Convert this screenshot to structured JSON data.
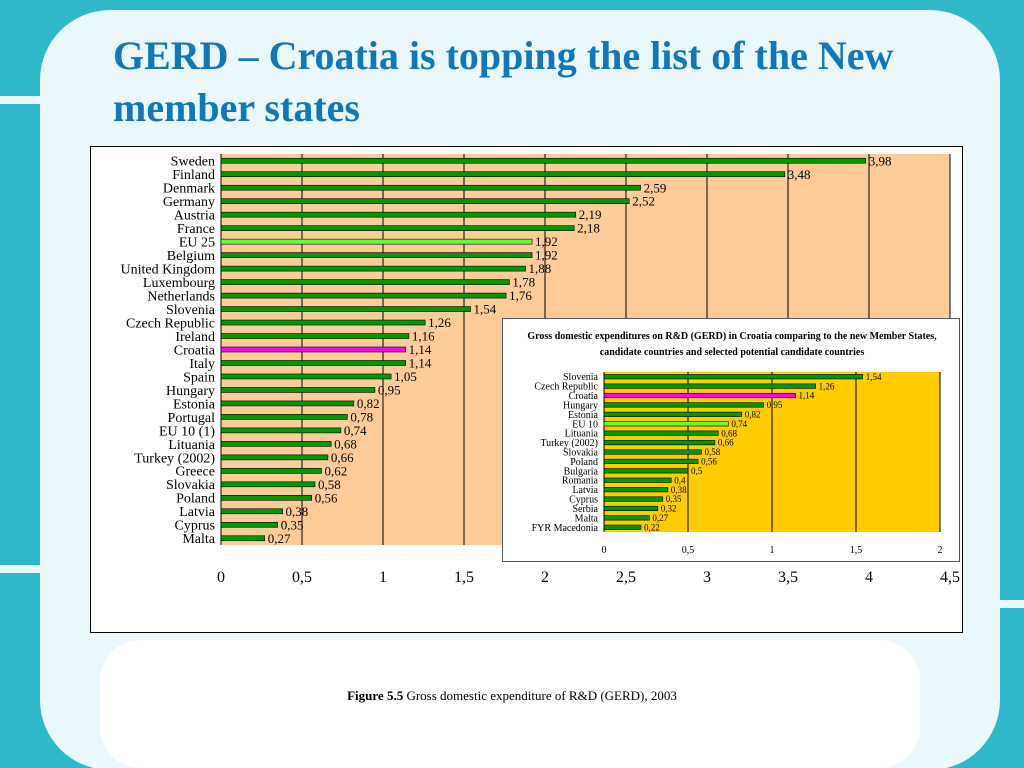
{
  "slide": {
    "title": "GERD – Croatia is topping the list of the New member states",
    "caption_label": "Figure 5.5",
    "caption_text": "Gross domestic expenditure of R&D (GERD), 2003"
  },
  "colors": {
    "background": "#2fb8c9",
    "panel": "#eaf7fb",
    "title": "#1177bb",
    "plot_main": "#ffcc99",
    "plot_inset": "#ffcc00",
    "bar": "#009900",
    "bar_eu": "#66ff33",
    "bar_highlight": "#ff00ff"
  },
  "chart_data": [
    {
      "type": "bar",
      "orientation": "horizontal",
      "title": "",
      "xlabel": "",
      "ylabel": "",
      "xlim": [
        0,
        4.5
      ],
      "xticks": [
        "0",
        "0,5",
        "1",
        "1,5",
        "2",
        "2,5",
        "3",
        "3,5",
        "4",
        "4,5"
      ],
      "grid": "vertical",
      "legend": "none",
      "categories": [
        "Sweden",
        "Finland",
        "Denmark",
        "Germany",
        "Austria",
        "France",
        "EU 25",
        "Belgium",
        "United Kingdom",
        "Luxembourg",
        "Netherlands",
        "Slovenia",
        "Czech Republic",
        "Ireland",
        "Croatia",
        "Italy",
        "Spain",
        "Hungary",
        "Estonia",
        "Portugal",
        "EU 10 (1)",
        "Lituania",
        "Turkey (2002)",
        "Greece",
        "Slovakia",
        "Poland",
        "Latvia",
        "Cyprus",
        "Malta"
      ],
      "values": [
        3.98,
        3.48,
        2.59,
        2.52,
        2.19,
        2.18,
        1.92,
        1.92,
        1.88,
        1.78,
        1.76,
        1.54,
        1.26,
        1.16,
        1.14,
        1.14,
        1.05,
        0.95,
        0.82,
        0.78,
        0.74,
        0.68,
        0.66,
        0.62,
        0.58,
        0.56,
        0.38,
        0.35,
        0.27
      ],
      "value_labels": [
        "3,98",
        "3,48",
        "2,59",
        "2,52",
        "2,19",
        "2,18",
        "1,92",
        "1,92",
        "1,88",
        "1,78",
        "1,76",
        "1,54",
        "1,26",
        "1,16",
        "1,14",
        "1,14",
        "1,05",
        "0,95",
        "0,82",
        "0,78",
        "0,74",
        "0,68",
        "0,66",
        "0,62",
        "0,58",
        "0,56",
        "0,38",
        "0,35",
        "0,27"
      ],
      "highlight": {
        "Croatia": "bar_highlight",
        "EU 25": "bar_eu"
      }
    },
    {
      "type": "bar",
      "orientation": "horizontal",
      "title": "Gross domestic expenditures on R&D (GERD) in Croatia comparing to the new Member States, candidate countries and selected potential candidate countries",
      "xlabel": "",
      "ylabel": "",
      "xlim": [
        0,
        2
      ],
      "xticks": [
        "0",
        "0,5",
        "1",
        "1,5",
        "2"
      ],
      "grid": "vertical",
      "legend": "none",
      "categories": [
        "Slovenia",
        "Czech Republic",
        "Croatia",
        "Hungary",
        "Estonia",
        "EU 10",
        "Lituania",
        "Turkey (2002)",
        "Slovakia",
        "Poland",
        "Bulgaria",
        "Romania",
        "Latvia",
        "Cyprus",
        "Serbia",
        "Malta",
        "FYR Macedonia"
      ],
      "values": [
        1.54,
        1.26,
        1.14,
        0.95,
        0.82,
        0.74,
        0.68,
        0.66,
        0.58,
        0.56,
        0.5,
        0.4,
        0.38,
        0.35,
        0.32,
        0.27,
        0.22
      ],
      "value_labels": [
        "1,54",
        "1,26",
        "1,14",
        "0,95",
        "0,82",
        "0,74",
        "0,68",
        "0,66",
        "0,58",
        "0,56",
        "0,5",
        "0,4",
        "0,38",
        "0,35",
        "0,32",
        "0,27",
        "0,22"
      ],
      "highlight": {
        "Croatia": "bar_highlight",
        "EU 10": "bar_eu"
      }
    }
  ]
}
